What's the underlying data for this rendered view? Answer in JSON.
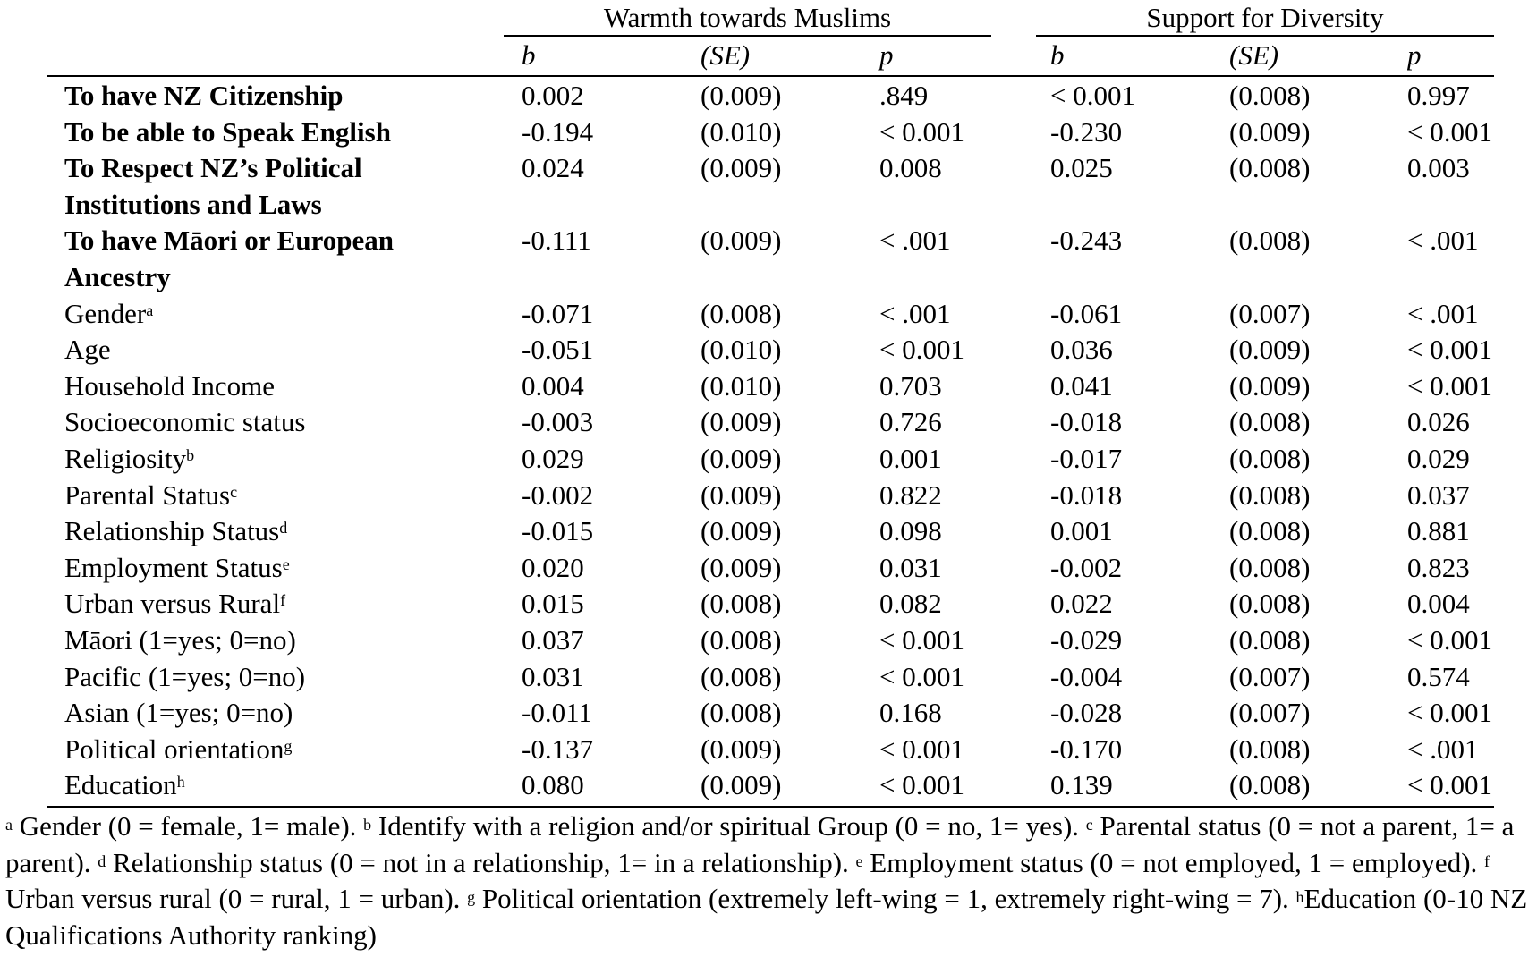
{
  "groups": {
    "warmth": "Warmth towards Muslims",
    "diversity": "Support for Diversity"
  },
  "subheaders": [
    "b",
    "(SE)",
    "p",
    "b",
    "(SE)",
    "p"
  ],
  "rows": [
    {
      "label": "To have NZ Citizenship",
      "sup": "",
      "bold": true,
      "values": [
        "0.002",
        "(0.009)",
        ".849",
        "< 0.001",
        "(0.008)",
        "0.997"
      ]
    },
    {
      "label": "To be able to Speak English",
      "sup": "",
      "bold": true,
      "values": [
        "-0.194",
        "(0.010)",
        "< 0.001",
        "-0.230",
        "(0.009)",
        "< 0.001"
      ]
    },
    {
      "label": "To Respect NZ’s Political Institutions and Laws",
      "sup": "",
      "bold": true,
      "values": [
        "0.024",
        "(0.009)",
        "0.008",
        "0.025",
        "(0.008)",
        "0.003"
      ]
    },
    {
      "label": "To have Māori or European Ancestry",
      "sup": "",
      "bold": true,
      "values": [
        "-0.111",
        "(0.009)",
        "< .001",
        "-0.243",
        "(0.008)",
        "< .001"
      ]
    },
    {
      "label": "Gender",
      "sup": "a",
      "bold": false,
      "values": [
        "-0.071",
        "(0.008)",
        "< .001",
        "-0.061",
        "(0.007)",
        "< .001"
      ]
    },
    {
      "label": "Age",
      "sup": "",
      "bold": false,
      "values": [
        "-0.051",
        "(0.010)",
        "< 0.001",
        "0.036",
        "(0.009)",
        "< 0.001"
      ]
    },
    {
      "label": "Household Income",
      "sup": "",
      "bold": false,
      "values": [
        "0.004",
        "(0.010)",
        "0.703",
        "0.041",
        "(0.009)",
        "< 0.001"
      ]
    },
    {
      "label": "Socioeconomic status",
      "sup": "",
      "bold": false,
      "values": [
        "-0.003",
        "(0.009)",
        "0.726",
        "-0.018",
        "(0.008)",
        "0.026"
      ]
    },
    {
      "label": "Religiosity",
      "sup": "b",
      "bold": false,
      "values": [
        "0.029",
        "(0.009)",
        "0.001",
        "-0.017",
        "(0.008)",
        "0.029"
      ]
    },
    {
      "label": "Parental Status",
      "sup": "c",
      "bold": false,
      "values": [
        "-0.002",
        "(0.009)",
        "0.822",
        "-0.018",
        "(0.008)",
        "0.037"
      ]
    },
    {
      "label": "Relationship Status",
      "sup": "d",
      "bold": false,
      "values": [
        "-0.015",
        "(0.009)",
        "0.098",
        "0.001",
        "(0.008)",
        "0.881"
      ]
    },
    {
      "label": "Employment Status",
      "sup": "e",
      "bold": false,
      "values": [
        "0.020",
        "(0.009)",
        "0.031",
        "-0.002",
        "(0.008)",
        "0.823"
      ]
    },
    {
      "label": "Urban versus Rural",
      "sup": "f",
      "bold": false,
      "values": [
        "0.015",
        "(0.008)",
        "0.082",
        "0.022",
        "(0.008)",
        "0.004"
      ]
    },
    {
      "label": "Māori (1=yes; 0=no)",
      "sup": "",
      "bold": false,
      "values": [
        "0.037",
        "(0.008)",
        "< 0.001",
        "-0.029",
        "(0.008)",
        "< 0.001"
      ]
    },
    {
      "label": "Pacific (1=yes; 0=no)",
      "sup": "",
      "bold": false,
      "values": [
        "0.031",
        "(0.008)",
        "< 0.001",
        "-0.004",
        "(0.007)",
        "0.574"
      ]
    },
    {
      "label": "Asian (1=yes; 0=no)",
      "sup": "",
      "bold": false,
      "values": [
        "-0.011",
        "(0.008)",
        "0.168",
        "-0.028",
        "(0.007)",
        "< 0.001"
      ]
    },
    {
      "label": "Political orientation",
      "sup": "g",
      "bold": false,
      "values": [
        "-0.137",
        "(0.009)",
        "< 0.001",
        "-0.170",
        "(0.008)",
        "< .001"
      ]
    },
    {
      "label": "Education",
      "sup": "h",
      "bold": false,
      "values": [
        "0.080",
        "(0.009)",
        "< 0.001",
        "0.139",
        "(0.008)",
        "< 0.001"
      ]
    }
  ],
  "notes": [
    {
      "sup": "a",
      "text": " Gender (0 = female, 1= male). "
    },
    {
      "sup": "b",
      "text": " Identify with a religion and/or spiritual Group (0 = no, 1= yes). "
    },
    {
      "sup": "c",
      "text": " Parental status (0 = not a parent, 1= a parent). "
    },
    {
      "sup": "d",
      "text": " Relationship status (0 = not in a relationship, 1= in a relationship). "
    },
    {
      "sup": "e",
      "text": " Employment status (0 = not employed, 1 = employed). "
    },
    {
      "sup": "f",
      "text": " Urban versus rural (0 = rural, 1 = urban). "
    },
    {
      "sup": "g",
      "text": " Political orientation (extremely left-wing = 1, extremely right-wing = 7). "
    },
    {
      "sup": "h",
      "text": "Education (0-10 NZ Qualifications Authority ranking)"
    }
  ]
}
